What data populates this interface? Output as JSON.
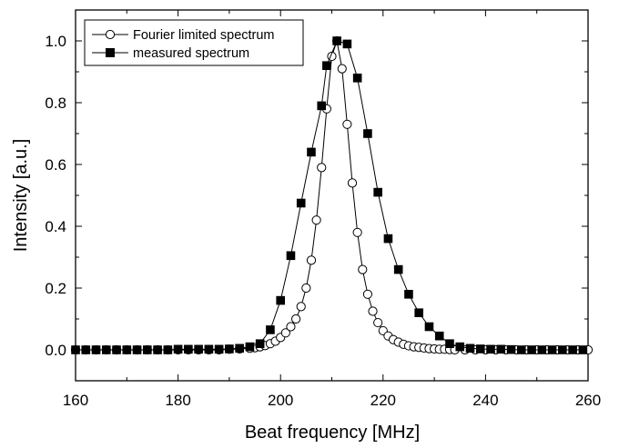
{
  "chart_data": {
    "type": "line",
    "title": "",
    "xlabel": "Beat frequency [MHz]",
    "ylabel": "Intensity [a.u.]",
    "xlim": [
      160,
      260
    ],
    "ylim": [
      -0.1,
      1.1
    ],
    "x_ticks": [
      160,
      180,
      200,
      220,
      240,
      260
    ],
    "x_tick_labels": [
      "160",
      "180",
      "200",
      "220",
      "240",
      "260"
    ],
    "y_ticks": [
      0.0,
      0.2,
      0.4,
      0.6,
      0.8,
      1.0
    ],
    "y_tick_labels": [
      "0.0",
      "0.2",
      "0.4",
      "0.6",
      "0.8",
      "1.0"
    ],
    "grid": false,
    "legend_position": "top-left",
    "series": [
      {
        "name": "Fourier limited spectrum",
        "marker": "open-circle",
        "x": [
          160,
          162,
          164,
          166,
          168,
          170,
          172,
          174,
          176,
          178,
          180,
          182,
          184,
          186,
          188,
          190,
          192,
          194,
          195,
          196,
          197,
          198,
          199,
          200,
          201,
          202,
          203,
          204,
          205,
          206,
          207,
          208,
          209,
          210,
          211,
          212,
          213,
          214,
          215,
          216,
          217,
          218,
          219,
          220,
          221,
          222,
          223,
          224,
          225,
          226,
          227,
          228,
          229,
          230,
          231,
          232,
          233,
          234,
          236,
          238,
          240,
          242,
          244,
          246,
          248,
          250,
          252,
          254,
          256,
          258,
          260
        ],
        "y": [
          0,
          0,
          0,
          0,
          0,
          0,
          0,
          0,
          0,
          0,
          0,
          0,
          0,
          0,
          0,
          0.002,
          0.003,
          0.005,
          0.007,
          0.01,
          0.014,
          0.02,
          0.028,
          0.04,
          0.055,
          0.075,
          0.1,
          0.14,
          0.2,
          0.29,
          0.42,
          0.59,
          0.78,
          0.95,
          1.0,
          0.91,
          0.73,
          0.54,
          0.38,
          0.26,
          0.18,
          0.125,
          0.088,
          0.062,
          0.045,
          0.033,
          0.025,
          0.018,
          0.013,
          0.01,
          0.008,
          0.006,
          0.004,
          0.003,
          0.002,
          0.002,
          0.001,
          0,
          0,
          0,
          0,
          0,
          0,
          0,
          0,
          0,
          0,
          0,
          0,
          0,
          0
        ]
      },
      {
        "name": "measured spectrum",
        "marker": "filled-square",
        "x": [
          160,
          162,
          164,
          166,
          168,
          170,
          172,
          174,
          176,
          178,
          180,
          182,
          184,
          186,
          188,
          190,
          192,
          194,
          196,
          198,
          200,
          202,
          204,
          206,
          208,
          209,
          211,
          213,
          215,
          217,
          219,
          221,
          223,
          225,
          227,
          229,
          231,
          233,
          235,
          237,
          239,
          241,
          243,
          245,
          247,
          249,
          251,
          253,
          255,
          257,
          259
        ],
        "y": [
          0,
          0,
          0,
          0,
          0,
          0,
          0,
          0,
          0,
          0,
          0.002,
          0.002,
          0.002,
          0.002,
          0.002,
          0.003,
          0.005,
          0.01,
          0.02,
          0.065,
          0.16,
          0.305,
          0.475,
          0.64,
          0.79,
          0.92,
          1.0,
          0.99,
          0.88,
          0.7,
          0.51,
          0.36,
          0.26,
          0.18,
          0.12,
          0.075,
          0.045,
          0.02,
          0.01,
          0.005,
          0.003,
          0.002,
          0.002,
          0.001,
          0,
          0,
          0,
          0,
          0,
          0,
          0
        ]
      }
    ]
  }
}
